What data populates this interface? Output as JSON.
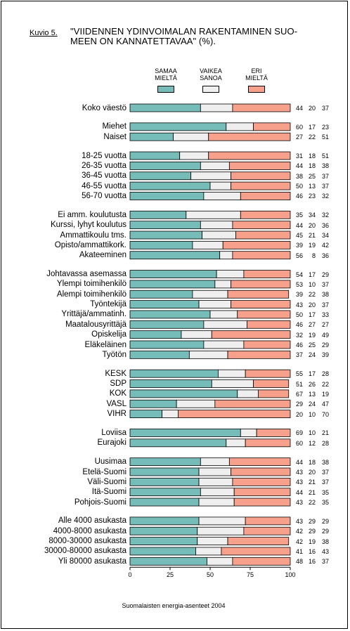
{
  "figure_label": "Kuvio 5.",
  "title_line1": "\"VIIDENNEN YDINVOIMALAN RAKENTAMINEN SUO-",
  "title_line2": "MEEN ON KANNATETTAVAA\" (%).",
  "source": "Suomalaisten energia-asenteet 2004",
  "colors": {
    "samaa": "#76bcb8",
    "vaikea": "#efefef",
    "eri": "#f7a08c"
  },
  "chart_data": {
    "type": "bar",
    "orientation": "horizontal",
    "stacked": true,
    "title": "\"VIIDENNEN YDINVOIMALAN RAKENTAMINEN SUOMEEN ON KANNATETTAVAA\" (%).",
    "xlim": [
      0,
      100
    ],
    "xticks": [
      "0",
      "25",
      "50",
      "75",
      "100"
    ],
    "legend": [
      {
        "line1": "SAMAA",
        "line2": "MIELTÄ"
      },
      {
        "line1": "VAIKEA",
        "line2": "SANOA"
      },
      {
        "line1": "ERI",
        "line2": "MIELTÄ"
      }
    ],
    "groups": [
      {
        "rows": [
          {
            "label": "Koko väestö",
            "values": [
              44,
              20,
              37
            ]
          }
        ]
      },
      {
        "rows": [
          {
            "label": "Miehet",
            "values": [
              60,
              17,
              23
            ]
          },
          {
            "label": "Naiset",
            "values": [
              27,
              22,
              51
            ]
          }
        ]
      },
      {
        "rows": [
          {
            "label": "18-25 vuotta",
            "values": [
              31,
              18,
              51
            ]
          },
          {
            "label": "26-35 vuotta",
            "values": [
              44,
              18,
              38
            ]
          },
          {
            "label": "36-45 vuotta",
            "values": [
              38,
              25,
              37
            ]
          },
          {
            "label": "46-55 vuotta",
            "values": [
              50,
              13,
              37
            ]
          },
          {
            "label": "56-70 vuotta",
            "values": [
              46,
              23,
              32
            ]
          }
        ]
      },
      {
        "rows": [
          {
            "label": "Ei amm. koulutusta",
            "values": [
              35,
              34,
              32
            ]
          },
          {
            "label": "Kurssi, lyhyt koulutus",
            "values": [
              44,
              20,
              36
            ]
          },
          {
            "label": "Ammattikoulu tms.",
            "values": [
              45,
              21,
              34
            ]
          },
          {
            "label": "Opisto/ammattikork.",
            "values": [
              39,
              19,
              42
            ]
          },
          {
            "label": "Akateeminen",
            "values": [
              56,
              8,
              36
            ]
          }
        ]
      },
      {
        "rows": [
          {
            "label": "Johtavassa asemassa",
            "values": [
              54,
              17,
              29
            ]
          },
          {
            "label": "Ylempi toimihenkilö",
            "values": [
              53,
              10,
              37
            ]
          },
          {
            "label": "Alempi toimihenkilö",
            "values": [
              39,
              22,
              38
            ]
          },
          {
            "label": "Työntekijä",
            "values": [
              43,
              20,
              37
            ]
          },
          {
            "label": "Yrittäjä/ammatinh.",
            "values": [
              50,
              17,
              33
            ]
          },
          {
            "label": "Maatalousyrittäjä",
            "values": [
              46,
              27,
              27
            ]
          },
          {
            "label": "Opiskelija",
            "values": [
              32,
              19,
              49
            ]
          },
          {
            "label": "Eläkeläinen",
            "values": [
              46,
              25,
              29
            ]
          },
          {
            "label": "Työtön",
            "values": [
              37,
              24,
              39
            ]
          }
        ]
      },
      {
        "rows": [
          {
            "label": "KESK",
            "values": [
              55,
              17,
              28
            ]
          },
          {
            "label": "SDP",
            "values": [
              51,
              26,
              22
            ]
          },
          {
            "label": "KOK",
            "values": [
              67,
              13,
              19
            ]
          },
          {
            "label": "VASL",
            "values": [
              29,
              24,
              47
            ]
          },
          {
            "label": "VIHR",
            "values": [
              20,
              10,
              70
            ]
          }
        ]
      },
      {
        "rows": [
          {
            "label": "Loviisa",
            "values": [
              69,
              10,
              21
            ]
          },
          {
            "label": "Eurajoki",
            "values": [
              60,
              12,
              28
            ]
          }
        ]
      },
      {
        "rows": [
          {
            "label": "Uusimaa",
            "values": [
              44,
              18,
              38
            ]
          },
          {
            "label": "Etelä-Suomi",
            "values": [
              43,
              20,
              37
            ]
          },
          {
            "label": "Väli-Suomi",
            "values": [
              43,
              21,
              37
            ]
          },
          {
            "label": "Itä-Suomi",
            "values": [
              44,
              21,
              35
            ]
          },
          {
            "label": "Pohjois-Suomi",
            "values": [
              43,
              22,
              35
            ]
          }
        ]
      },
      {
        "rows": [
          {
            "label": "Alle 4000 asukasta",
            "values": [
              43,
              29,
              29
            ]
          },
          {
            "label": "4000-8000 asukasta",
            "values": [
              42,
              29,
              29
            ]
          },
          {
            "label": "8000-30000 asukasta",
            "values": [
              42,
              19,
              38
            ]
          },
          {
            "label": "30000-80000 asukasta",
            "values": [
              41,
              16,
              43
            ]
          },
          {
            "label": "Yli 80000 asukasta",
            "values": [
              48,
              16,
              37
            ]
          }
        ]
      }
    ]
  }
}
